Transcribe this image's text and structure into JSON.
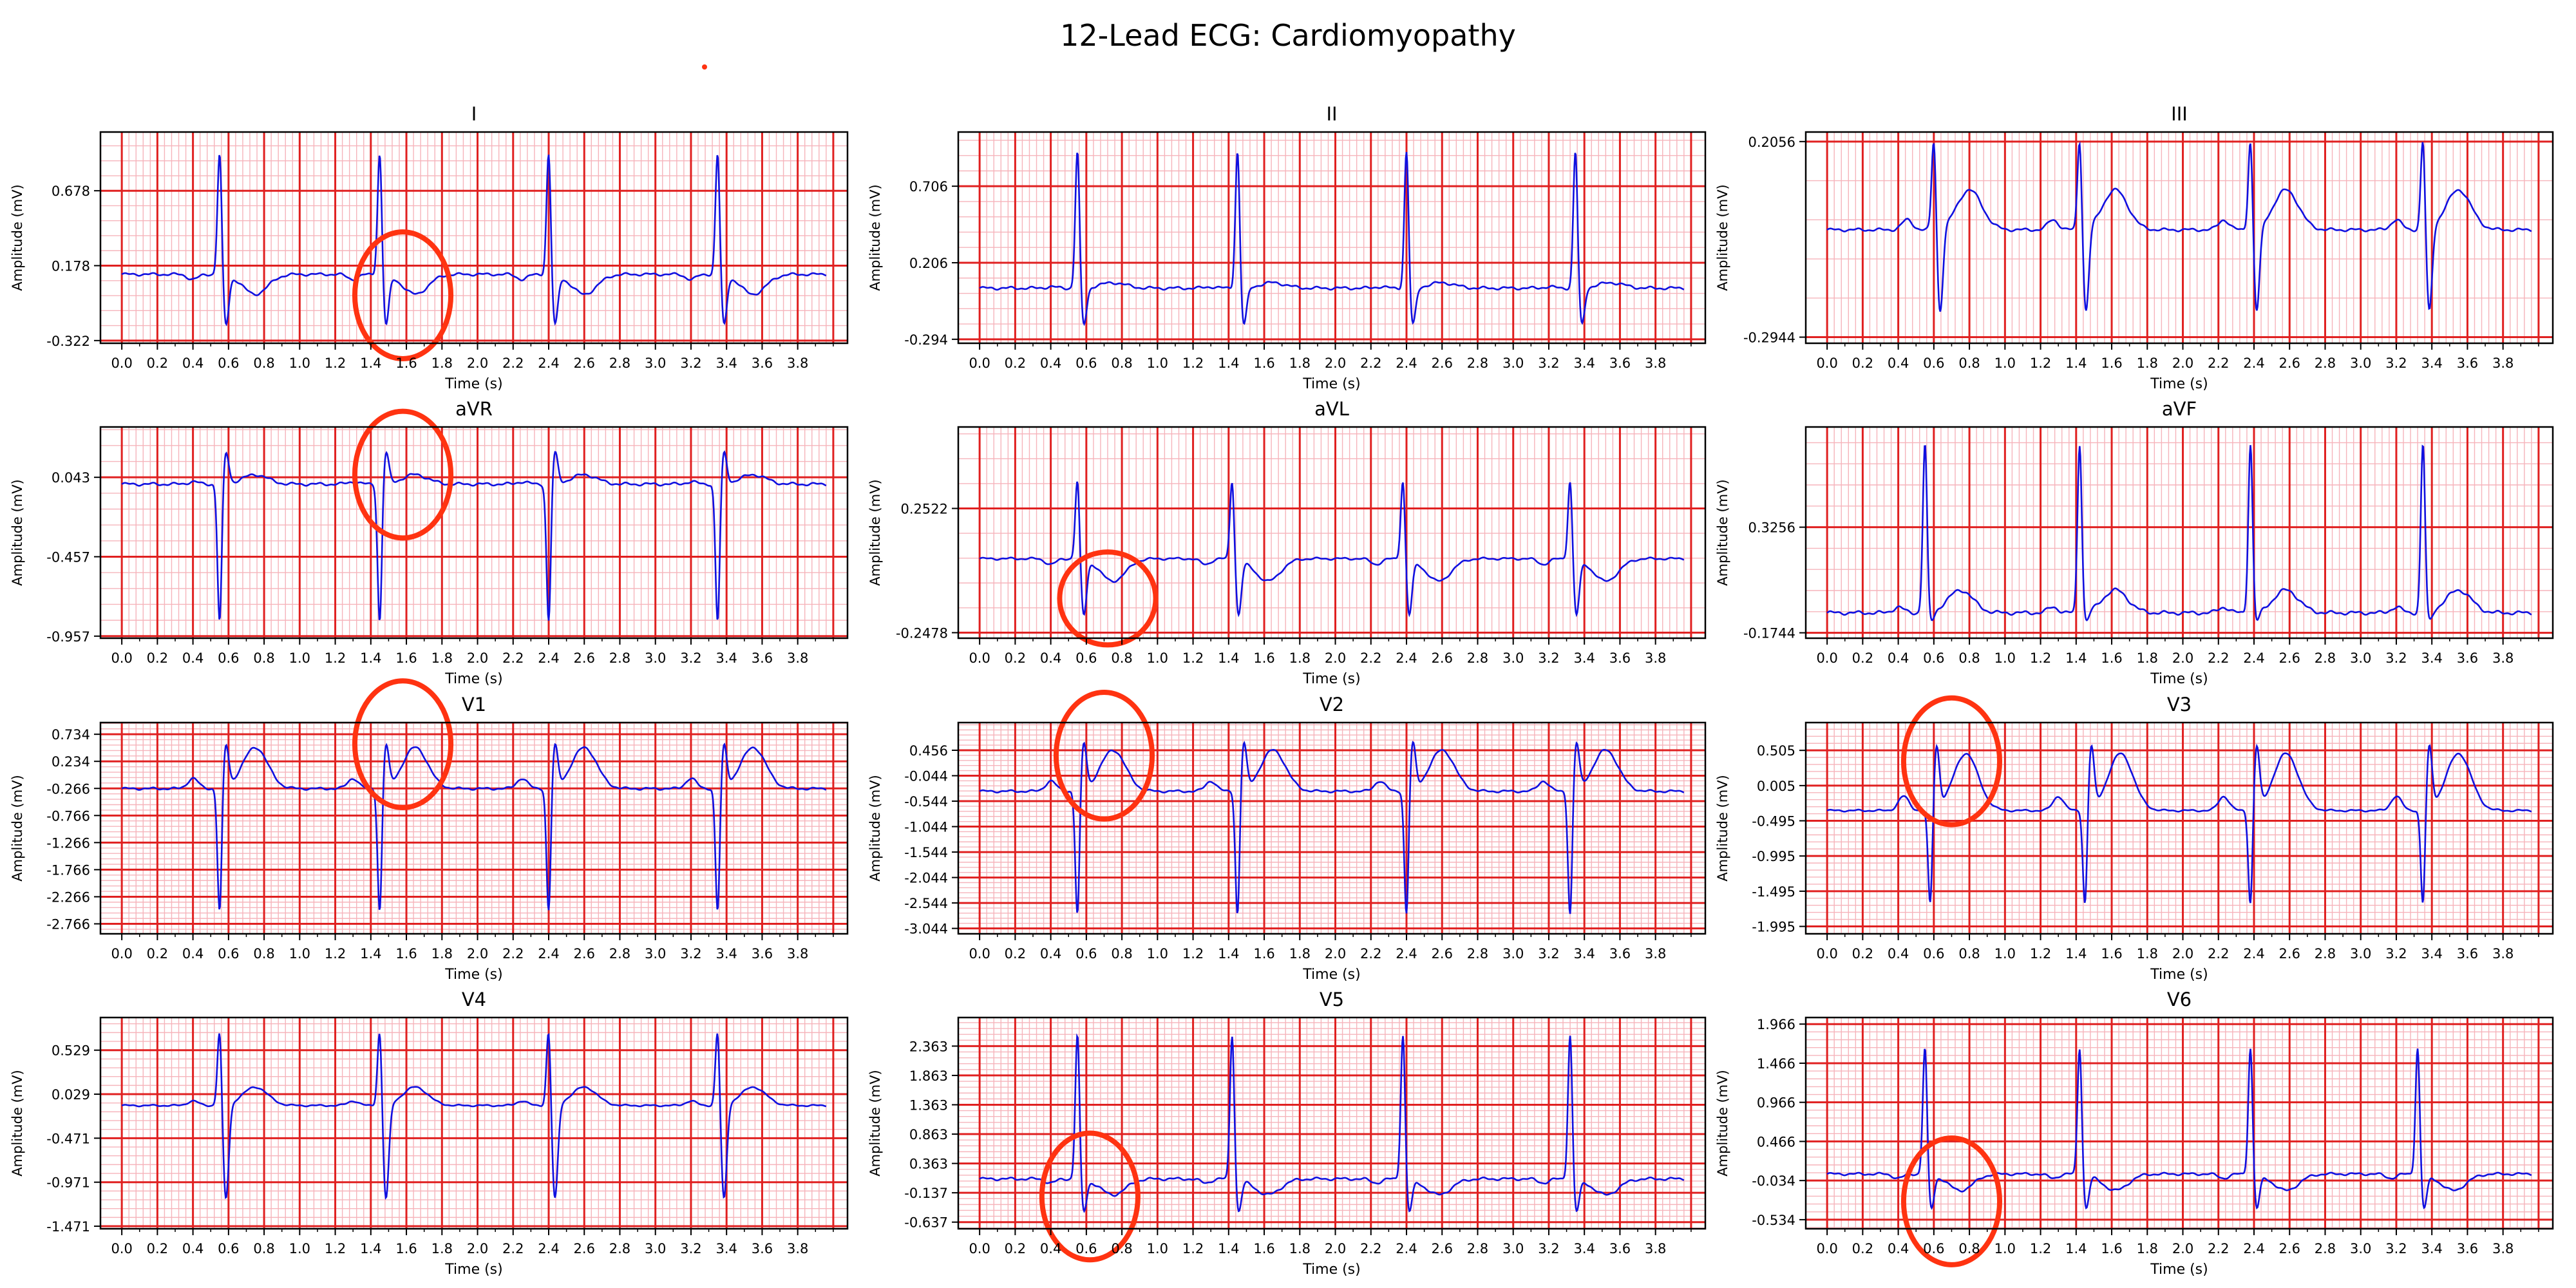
{
  "title": "12-Lead ECG: Cardiomyopathy",
  "colors": {
    "trace": "#1010e0",
    "major_grid": "#e02020",
    "minor_grid": "#f6b4bb",
    "annotation": "#ff3311",
    "axis": "#000000"
  },
  "chart_data": [
    {
      "type": "line",
      "title": "I",
      "xlabel": "Time (s)",
      "ylabel": "Amplitude (mV)",
      "xlim": [
        -0.12,
        4.08
      ],
      "ylim": [
        -0.34,
        1.07
      ],
      "xticks": [
        "0.0",
        "0.2",
        "0.4",
        "0.6",
        "0.8",
        "1.0",
        "1.2",
        "1.4",
        "1.6",
        "1.8",
        "2.0",
        "2.2",
        "2.4",
        "2.6",
        "2.8",
        "3.0",
        "3.2",
        "3.4",
        "3.6",
        "3.8"
      ],
      "yticks": [
        "-0.322",
        "0.178",
        "0.678"
      ],
      "yvals": [
        -0.322,
        0.178,
        0.678
      ],
      "beats": [
        0.55,
        1.45,
        2.4,
        3.35
      ],
      "peak": 0.95,
      "baseline": 0.12,
      "twave": -0.1,
      "s": -0.3,
      "annotations": [
        {
          "center": [
            1.58,
            -0.02
          ],
          "radius": [
            0.27,
            0.3
          ]
        }
      ]
    },
    {
      "type": "line",
      "title": "II",
      "xlabel": "Time (s)",
      "ylabel": "Amplitude (mV)",
      "xlim": [
        -0.12,
        4.08
      ],
      "ylim": [
        -0.32,
        1.06
      ],
      "xticks": [
        "0.0",
        "0.2",
        "0.4",
        "0.6",
        "0.8",
        "1.0",
        "1.2",
        "1.4",
        "1.6",
        "1.8",
        "2.0",
        "2.2",
        "2.4",
        "2.6",
        "2.8",
        "3.0",
        "3.2",
        "3.4",
        "3.6",
        "3.8"
      ],
      "yticks": [
        "-0.294",
        "0.206",
        "0.706"
      ],
      "yvals": [
        -0.294,
        0.206,
        0.706
      ],
      "beats": [
        0.55,
        1.45,
        2.4,
        3.35
      ],
      "peak": 0.95,
      "baseline": 0.04,
      "twave": 0.1,
      "s": -0.27,
      "annotations": []
    },
    {
      "type": "line",
      "title": "III",
      "xlabel": "Time (s)",
      "ylabel": "Amplitude (mV)",
      "xlim": [
        -0.12,
        4.08
      ],
      "ylim": [
        -0.31,
        0.23
      ],
      "xticks": [
        "0.0",
        "0.2",
        "0.4",
        "0.6",
        "0.8",
        "1.0",
        "1.2",
        "1.4",
        "1.6",
        "1.8",
        "2.0",
        "2.2",
        "2.4",
        "2.6",
        "2.8",
        "3.0",
        "3.2",
        "3.4",
        "3.6",
        "3.8"
      ],
      "yticks": [
        "-0.2944",
        "0.2056"
      ],
      "yvals": [
        -0.2944,
        0.2056
      ],
      "beats": [
        0.6,
        1.42,
        2.38,
        3.35
      ],
      "peak": 0.22,
      "baseline": -0.02,
      "twave": 0.15,
      "s": -0.29,
      "annotations": []
    },
    {
      "type": "line",
      "title": "aVR",
      "xlabel": "Time (s)",
      "ylabel": "Amplitude (mV)",
      "xlim": [
        -0.12,
        4.08
      ],
      "ylim": [
        -0.97,
        0.36
      ],
      "xticks": [
        "0.0",
        "0.2",
        "0.4",
        "0.6",
        "0.8",
        "1.0",
        "1.2",
        "1.4",
        "1.6",
        "1.8",
        "2.0",
        "2.2",
        "2.4",
        "2.6",
        "2.8",
        "3.0",
        "3.2",
        "3.4",
        "3.6",
        "3.8"
      ],
      "yticks": [
        "-0.957",
        "-0.457",
        "0.043"
      ],
      "yvals": [
        -0.957,
        -0.457,
        0.043
      ],
      "beats": [
        0.55,
        1.45,
        2.4,
        3.35
      ],
      "peak": -0.88,
      "baseline": 0.0,
      "twave": 0.1,
      "s": 0.25,
      "annotations": [
        {
          "center": [
            1.58,
            0.06
          ],
          "radius": [
            0.27,
            0.3
          ]
        }
      ]
    },
    {
      "type": "line",
      "title": "aVL",
      "xlabel": "Time (s)",
      "ylabel": "Amplitude (mV)",
      "xlim": [
        -0.12,
        4.08
      ],
      "ylim": [
        -0.27,
        0.58
      ],
      "xticks": [
        "0.0",
        "0.2",
        "0.4",
        "0.6",
        "0.8",
        "1.0",
        "1.2",
        "1.4",
        "1.6",
        "1.8",
        "2.0",
        "2.2",
        "2.4",
        "2.6",
        "2.8",
        "3.0",
        "3.2",
        "3.4",
        "3.6",
        "3.8"
      ],
      "yticks": [
        "-0.2478",
        "0.2522"
      ],
      "yvals": [
        -0.2478,
        0.2522
      ],
      "beats": [
        0.55,
        1.42,
        2.38,
        3.32
      ],
      "peak": 0.38,
      "baseline": 0.05,
      "twave": -0.1,
      "s": -0.23,
      "annotations": [
        {
          "center": [
            0.72,
            -0.11
          ],
          "radius": [
            0.27,
            0.22
          ]
        }
      ]
    },
    {
      "type": "line",
      "title": "aVF",
      "xlabel": "Time (s)",
      "ylabel": "Amplitude (mV)",
      "xlim": [
        -0.12,
        4.08
      ],
      "ylim": [
        -0.2,
        0.8
      ],
      "xticks": [
        "0.0",
        "0.2",
        "0.4",
        "0.6",
        "0.8",
        "1.0",
        "1.2",
        "1.4",
        "1.6",
        "1.8",
        "2.0",
        "2.2",
        "2.4",
        "2.6",
        "2.8",
        "3.0",
        "3.2",
        "3.4",
        "3.6",
        "3.8"
      ],
      "yticks": [
        "-0.1744",
        "0.3256"
      ],
      "yvals": [
        -0.1744,
        0.3256
      ],
      "beats": [
        0.55,
        1.42,
        2.38,
        3.35
      ],
      "peak": 0.72,
      "baseline": -0.08,
      "twave": 0.1,
      "s": -0.14,
      "annotations": []
    },
    {
      "type": "line",
      "title": "V1",
      "xlabel": "Time (s)",
      "ylabel": "Amplitude (mV)",
      "xlim": [
        -0.12,
        4.08
      ],
      "ylim": [
        -2.95,
        0.95
      ],
      "xticks": [
        "0.0",
        "0.2",
        "0.4",
        "0.6",
        "0.8",
        "1.0",
        "1.2",
        "1.4",
        "1.6",
        "1.8",
        "2.0",
        "2.2",
        "2.4",
        "2.6",
        "2.8",
        "3.0",
        "3.2",
        "3.4",
        "3.6",
        "3.8"
      ],
      "yticks": [
        "-2.766",
        "-2.266",
        "-1.766",
        "-1.266",
        "-0.766",
        "-0.266",
        "0.234",
        "0.734"
      ],
      "yvals": [
        -2.766,
        -2.266,
        -1.766,
        -1.266,
        -0.766,
        -0.266,
        0.234,
        0.734
      ],
      "beats": [
        0.55,
        1.45,
        2.4,
        3.35
      ],
      "peak": -2.6,
      "baseline": -0.27,
      "twave": 1.0,
      "s": 0.7,
      "annotations": [
        {
          "center": [
            1.58,
            0.55
          ],
          "radius": [
            0.27,
            0.3
          ]
        }
      ]
    },
    {
      "type": "line",
      "title": "V2",
      "xlabel": "Time (s)",
      "ylabel": "Amplitude (mV)",
      "xlim": [
        -0.12,
        4.08
      ],
      "ylim": [
        -3.15,
        1.0
      ],
      "xticks": [
        "0.0",
        "0.2",
        "0.4",
        "0.6",
        "0.8",
        "1.0",
        "1.2",
        "1.4",
        "1.6",
        "1.8",
        "2.0",
        "2.2",
        "2.4",
        "2.6",
        "2.8",
        "3.0",
        "3.2",
        "3.4",
        "3.6",
        "3.8"
      ],
      "yticks": [
        "-3.044",
        "-2.544",
        "-2.044",
        "-1.544",
        "-1.044",
        "-0.544",
        "-0.044",
        "0.456"
      ],
      "yvals": [
        -3.044,
        -2.544,
        -2.044,
        -1.544,
        -1.044,
        -0.544,
        -0.044,
        0.456
      ],
      "beats": [
        0.55,
        1.45,
        2.4,
        3.32
      ],
      "peak": -2.85,
      "baseline": -0.35,
      "twave": 1.0,
      "s": 0.8,
      "annotations": [
        {
          "center": [
            0.7,
            0.35
          ],
          "radius": [
            0.27,
            0.3
          ]
        }
      ]
    },
    {
      "type": "line",
      "title": "V3",
      "xlabel": "Time (s)",
      "ylabel": "Amplitude (mV)",
      "xlim": [
        -0.12,
        4.08
      ],
      "ylim": [
        -2.1,
        0.9
      ],
      "xticks": [
        "0.0",
        "0.2",
        "0.4",
        "0.6",
        "0.8",
        "1.0",
        "1.2",
        "1.4",
        "1.6",
        "1.8",
        "2.0",
        "2.2",
        "2.4",
        "2.6",
        "2.8",
        "3.0",
        "3.2",
        "3.4",
        "3.6",
        "3.8"
      ],
      "yticks": [
        "-1.995",
        "-1.495",
        "-0.995",
        "-0.495",
        "0.005",
        "0.505"
      ],
      "yvals": [
        -1.995,
        -1.495,
        -0.995,
        -0.495,
        0.005,
        0.505
      ],
      "beats": [
        0.58,
        1.45,
        2.38,
        3.35
      ],
      "peak": -1.75,
      "baseline": -0.35,
      "twave": 1.0,
      "s": 0.75,
      "annotations": [
        {
          "center": [
            0.7,
            0.35
          ],
          "radius": [
            0.27,
            0.3
          ]
        }
      ]
    },
    {
      "type": "line",
      "title": "V4",
      "xlabel": "Time (s)",
      "ylabel": "Amplitude (mV)",
      "xlim": [
        -0.12,
        4.08
      ],
      "ylim": [
        -1.5,
        0.9
      ],
      "xticks": [
        "0.0",
        "0.2",
        "0.4",
        "0.6",
        "0.8",
        "1.0",
        "1.2",
        "1.4",
        "1.6",
        "1.8",
        "2.0",
        "2.2",
        "2.4",
        "2.6",
        "2.8",
        "3.0",
        "3.2",
        "3.4",
        "3.6",
        "3.8"
      ],
      "yticks": [
        "-1.471",
        "-0.971",
        "-0.471",
        "0.029",
        "0.529"
      ],
      "yvals": [
        -1.471,
        -0.971,
        -0.471,
        0.029,
        0.529
      ],
      "beats": [
        0.55,
        1.45,
        2.4,
        3.35
      ],
      "peak": 0.8,
      "baseline": -0.1,
      "twave": 0.25,
      "s": -1.45,
      "annotations": []
    },
    {
      "type": "line",
      "title": "V5",
      "xlabel": "Time (s)",
      "ylabel": "Amplitude (mV)",
      "xlim": [
        -0.12,
        4.08
      ],
      "ylim": [
        -0.75,
        2.85
      ],
      "xticks": [
        "0.0",
        "0.2",
        "0.4",
        "0.6",
        "0.8",
        "1.0",
        "1.2",
        "1.4",
        "1.6",
        "1.8",
        "2.0",
        "2.2",
        "2.4",
        "2.6",
        "2.8",
        "3.0",
        "3.2",
        "3.4",
        "3.6",
        "3.8"
      ],
      "yticks": [
        "-0.637",
        "-0.137",
        "0.363",
        "0.863",
        "1.363",
        "1.863",
        "2.363"
      ],
      "yvals": [
        -0.637,
        -0.137,
        0.363,
        0.863,
        1.363,
        1.863,
        2.363
      ],
      "beats": [
        0.55,
        1.42,
        2.38,
        3.32
      ],
      "peak": 2.6,
      "baseline": 0.1,
      "twave": -0.35,
      "s": -0.6,
      "annotations": [
        {
          "center": [
            0.62,
            -0.2
          ],
          "radius": [
            0.27,
            0.3
          ]
        }
      ]
    },
    {
      "type": "line",
      "title": "V6",
      "xlabel": "Time (s)",
      "ylabel": "Amplitude (mV)",
      "xlim": [
        -0.12,
        4.08
      ],
      "ylim": [
        -0.65,
        2.05
      ],
      "xticks": [
        "0.0",
        "0.2",
        "0.4",
        "0.6",
        "0.8",
        "1.0",
        "1.2",
        "1.4",
        "1.6",
        "1.8",
        "2.0",
        "2.2",
        "2.4",
        "2.6",
        "2.8",
        "3.0",
        "3.2",
        "3.4",
        "3.6",
        "3.8"
      ],
      "yticks": [
        "-0.534",
        "-0.034",
        "0.466",
        "0.966",
        "1.466",
        "1.966"
      ],
      "yvals": [
        -0.534,
        -0.034,
        0.466,
        0.966,
        1.466,
        1.966
      ],
      "beats": [
        0.55,
        1.42,
        2.38,
        3.32
      ],
      "peak": 1.7,
      "baseline": 0.05,
      "twave": -0.3,
      "s": -0.5,
      "annotations": [
        {
          "center": [
            0.7,
            -0.3
          ],
          "radius": [
            0.27,
            0.3
          ]
        }
      ]
    }
  ]
}
